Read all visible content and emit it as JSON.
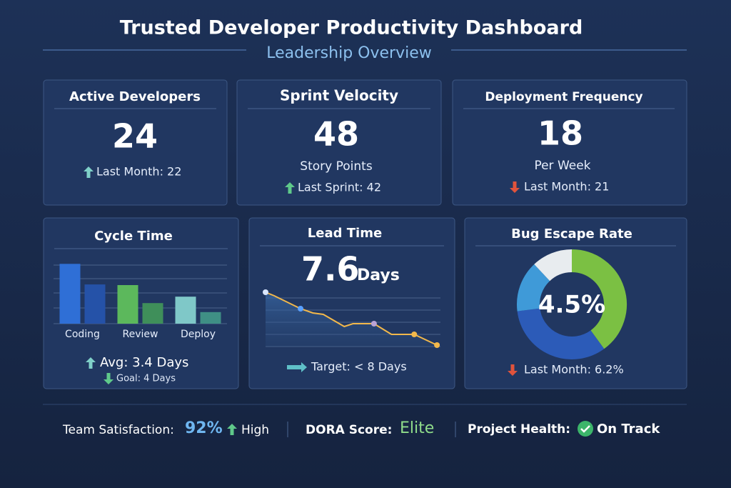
{
  "header": {
    "title": "Trusted Developer Productivity Dashboard",
    "subtitle": "Leadership Overview"
  },
  "cards": [
    {
      "title": "Active Developers",
      "value": 24,
      "comparison": "Last Month: 22"
    },
    {
      "title": "Sprint Velocity",
      "value": 48,
      "unit": "Story Points",
      "comparison": "Last Sprint: 42"
    },
    {
      "title": "Deployment Frequency",
      "value": 18,
      "unit": "Per Week",
      "comparison": "Last Month: 21"
    },
    {
      "title": "Cycle Time",
      "chart_data": {
        "type": "bar",
        "categories": [
          "Coding",
          "Review",
          "Deploy"
        ],
        "series": [
          {
            "values": [
              93,
              60,
              42
            ],
            "colors": [
              "#2f6fd6",
              "#5cb85c",
              "#7fc8c8"
            ]
          },
          {
            "values": [
              61,
              32,
              18
            ],
            "colors": [
              "#2552a8",
              "#3f8f5a",
              "#3f8f85"
            ]
          }
        ],
        "ylim": [
          0,
          100
        ]
      },
      "summary": "Avg: 3.4 Days",
      "goal": "Goal: 4 Days"
    },
    {
      "title": "Lead Time",
      "value": 7.6,
      "unit": "Days",
      "chart_data": {
        "type": "line",
        "x": [
          0,
          0.5,
          2,
          2.7,
          3.3,
          4.5,
          5,
          6.2,
          7.2,
          8.5,
          9.8
        ],
        "values": [
          7.6,
          7.1,
          5.3,
          4.7,
          4.5,
          2.8,
          3.2,
          3.2,
          1.7,
          1.7,
          0.2
        ],
        "xlim": [
          0,
          10
        ],
        "ylim": [
          0,
          8
        ],
        "color": "#f2b84b",
        "highlight_points": [
          {
            "index": 0,
            "color": "#d9e6ff"
          },
          {
            "index": 2,
            "color": "#5aa0ff"
          },
          {
            "index": 7,
            "color": "#b9a3d6"
          },
          {
            "index": 9,
            "color": "#f2b84b"
          },
          {
            "index": 10,
            "color": "#f2b84b"
          }
        ]
      },
      "target": "Target: < 8 Days"
    },
    {
      "title": "Bug Escape Rate",
      "chart_data": {
        "type": "pie",
        "values": [
          40,
          33,
          15,
          12
        ],
        "colors": [
          "#7bc043",
          "#2c5bb8",
          "#3f9ad8",
          "#e8ecef"
        ],
        "center_label": "4.5%"
      },
      "comparison": "Last Month: 6.2%"
    }
  ],
  "footer": {
    "satisfaction_label": "Team Satisfaction:",
    "satisfaction_value": "92%",
    "satisfaction_status": "High",
    "dora_label": "DORA Score:",
    "dora_value": "Elite",
    "health_label": "Project Health:",
    "health_value": "On Track"
  }
}
